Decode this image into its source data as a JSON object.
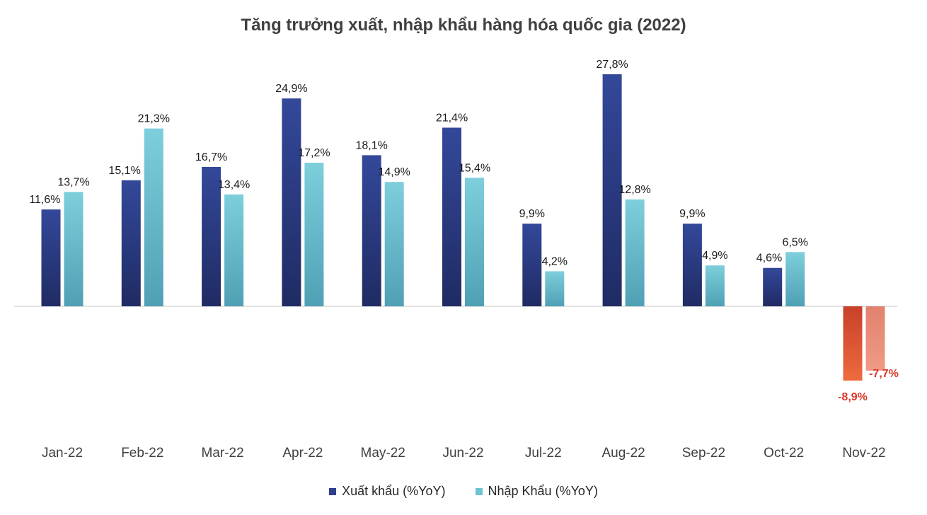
{
  "chart_data": {
    "type": "bar",
    "title": "Tăng trưởng xuất, nhập khẩu hàng hóa quốc gia (2022)",
    "categories": [
      "Jan-22",
      "Feb-22",
      "Mar-22",
      "Apr-22",
      "May-22",
      "Jun-22",
      "Jul-22",
      "Aug-22",
      "Sep-22",
      "Oct-22",
      "Nov-22"
    ],
    "series": [
      {
        "name": "Xuất khẩu (%YoY)",
        "color": "#2e3f8a",
        "negative_color": "#e0542f",
        "values": [
          11.6,
          15.1,
          16.7,
          24.9,
          18.1,
          21.4,
          9.9,
          27.8,
          9.9,
          4.6,
          -8.9
        ],
        "labels": [
          "11,6%",
          "15,1%",
          "16,7%",
          "24,9%",
          "18,1%",
          "21,4%",
          "9,9%",
          "27,8%",
          "9,9%",
          "4,6%",
          "-8,9%"
        ]
      },
      {
        "name": "Nhập Khẩu (%YoY)",
        "color": "#6cc3d2",
        "negative_color": "#ea8a78",
        "values": [
          13.7,
          21.3,
          13.4,
          17.2,
          14.9,
          15.4,
          4.2,
          12.8,
          4.9,
          6.5,
          -7.7
        ],
        "labels": [
          "13,7%",
          "21,3%",
          "13,4%",
          "17,2%",
          "14,9%",
          "15,4%",
          "4,2%",
          "12,8%",
          "4,9%",
          "6,5%",
          "-7,7%"
        ]
      }
    ],
    "xlabel": "",
    "ylabel": "",
    "ylim": [
      -14,
      30
    ],
    "grid": false,
    "legend": "bottom",
    "negative_label_color": "#d83a2a"
  }
}
